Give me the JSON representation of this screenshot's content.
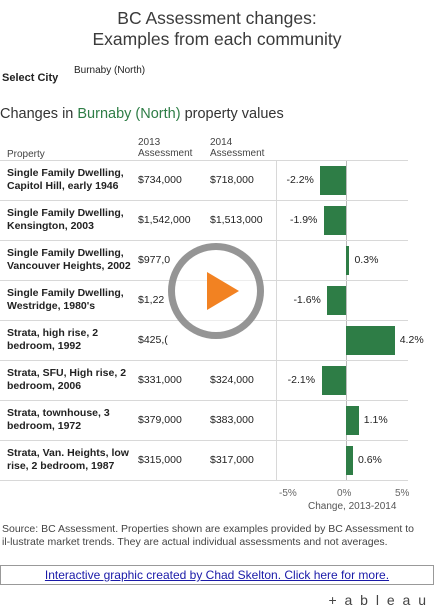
{
  "title_line1": "BC Assessment changes:",
  "title_line2": "Examples from each community",
  "select_city": {
    "label": "Select City",
    "value": "Burnaby (North)"
  },
  "subtitle": {
    "prefix": "Changes in ",
    "city": "Burnaby (North)",
    "suffix": " property values"
  },
  "headers": {
    "property": "Property",
    "y2013_a": "2013",
    "y2013_b": "Assessment",
    "y2014_a": "2014",
    "y2014_b": "Assessment"
  },
  "colors": {
    "bar": "#2e7d46",
    "accent": "#2e7d46",
    "play": "#f28222"
  },
  "chart_data": {
    "type": "bar",
    "orientation": "horizontal",
    "categories": [
      "Single Family Dwelling, Capitol Hill, early 1946",
      "Single Family Dwelling, Kensington, 2003",
      "Single Family Dwelling, Vancouver Heights, 2002",
      "Single Family Dwelling, Westridge, 1980's",
      "Strata, high rise, 2 bedroom, 1992",
      "Strata, SFU, High rise, 2 bedroom, 2006",
      "Strata, townhouse, 3 bedroom, 1972",
      "Strata, Van. Heights, low rise, 2 bedroom, 1987"
    ],
    "values": [
      -2.2,
      -1.9,
      0.3,
      -1.6,
      4.2,
      -2.1,
      1.1,
      0.6
    ],
    "labels": [
      "-2.2%",
      "-1.9%",
      "0.3%",
      "-1.6%",
      "4.2%",
      "-2.1%",
      "1.1%",
      "0.6%"
    ],
    "assess_2013": [
      "$734,000",
      "$1,542,000",
      "$977,0",
      "$1,22",
      "$425,(",
      "$331,000",
      "$379,000",
      "$315,000"
    ],
    "assess_2014": [
      "$718,000",
      "$1,513,000",
      "",
      "",
      "",
      "$324,000",
      "$383,000",
      "$317,000"
    ],
    "xlim": [
      -5,
      5
    ],
    "ticks": [
      "-5%",
      "0%",
      "5%"
    ],
    "xlabel": "Change, 2013-2014"
  },
  "rows_display": [
    [
      "Single Family Dwelling,",
      "Capitol Hill, early 1946"
    ],
    [
      "Single Family Dwelling,",
      "Kensington, 2003"
    ],
    [
      "Single Family Dwelling,",
      "Vancouver Heights, 2002"
    ],
    [
      "Single Family Dwelling,",
      "Westridge, 1980's"
    ],
    [
      "Strata, high rise, 2",
      "bedroom, 1992"
    ],
    [
      "Strata, SFU, High rise, 2",
      "bedroom, 2006"
    ],
    [
      "Strata, townhouse, 3",
      "bedroom, 1972"
    ],
    [
      "Strata, Van. Heights, low",
      "rise, 2 bedroom, 1987"
    ]
  ],
  "source": "Source: BC Assessment. Properties shown are examples provided by BC Assessment to il-lustrate market trends. They are actual individual assessments and not averages.",
  "credit": "Interactive graphic created by Chad Skelton. Click here for more.",
  "logo": "+ a b l e a u"
}
